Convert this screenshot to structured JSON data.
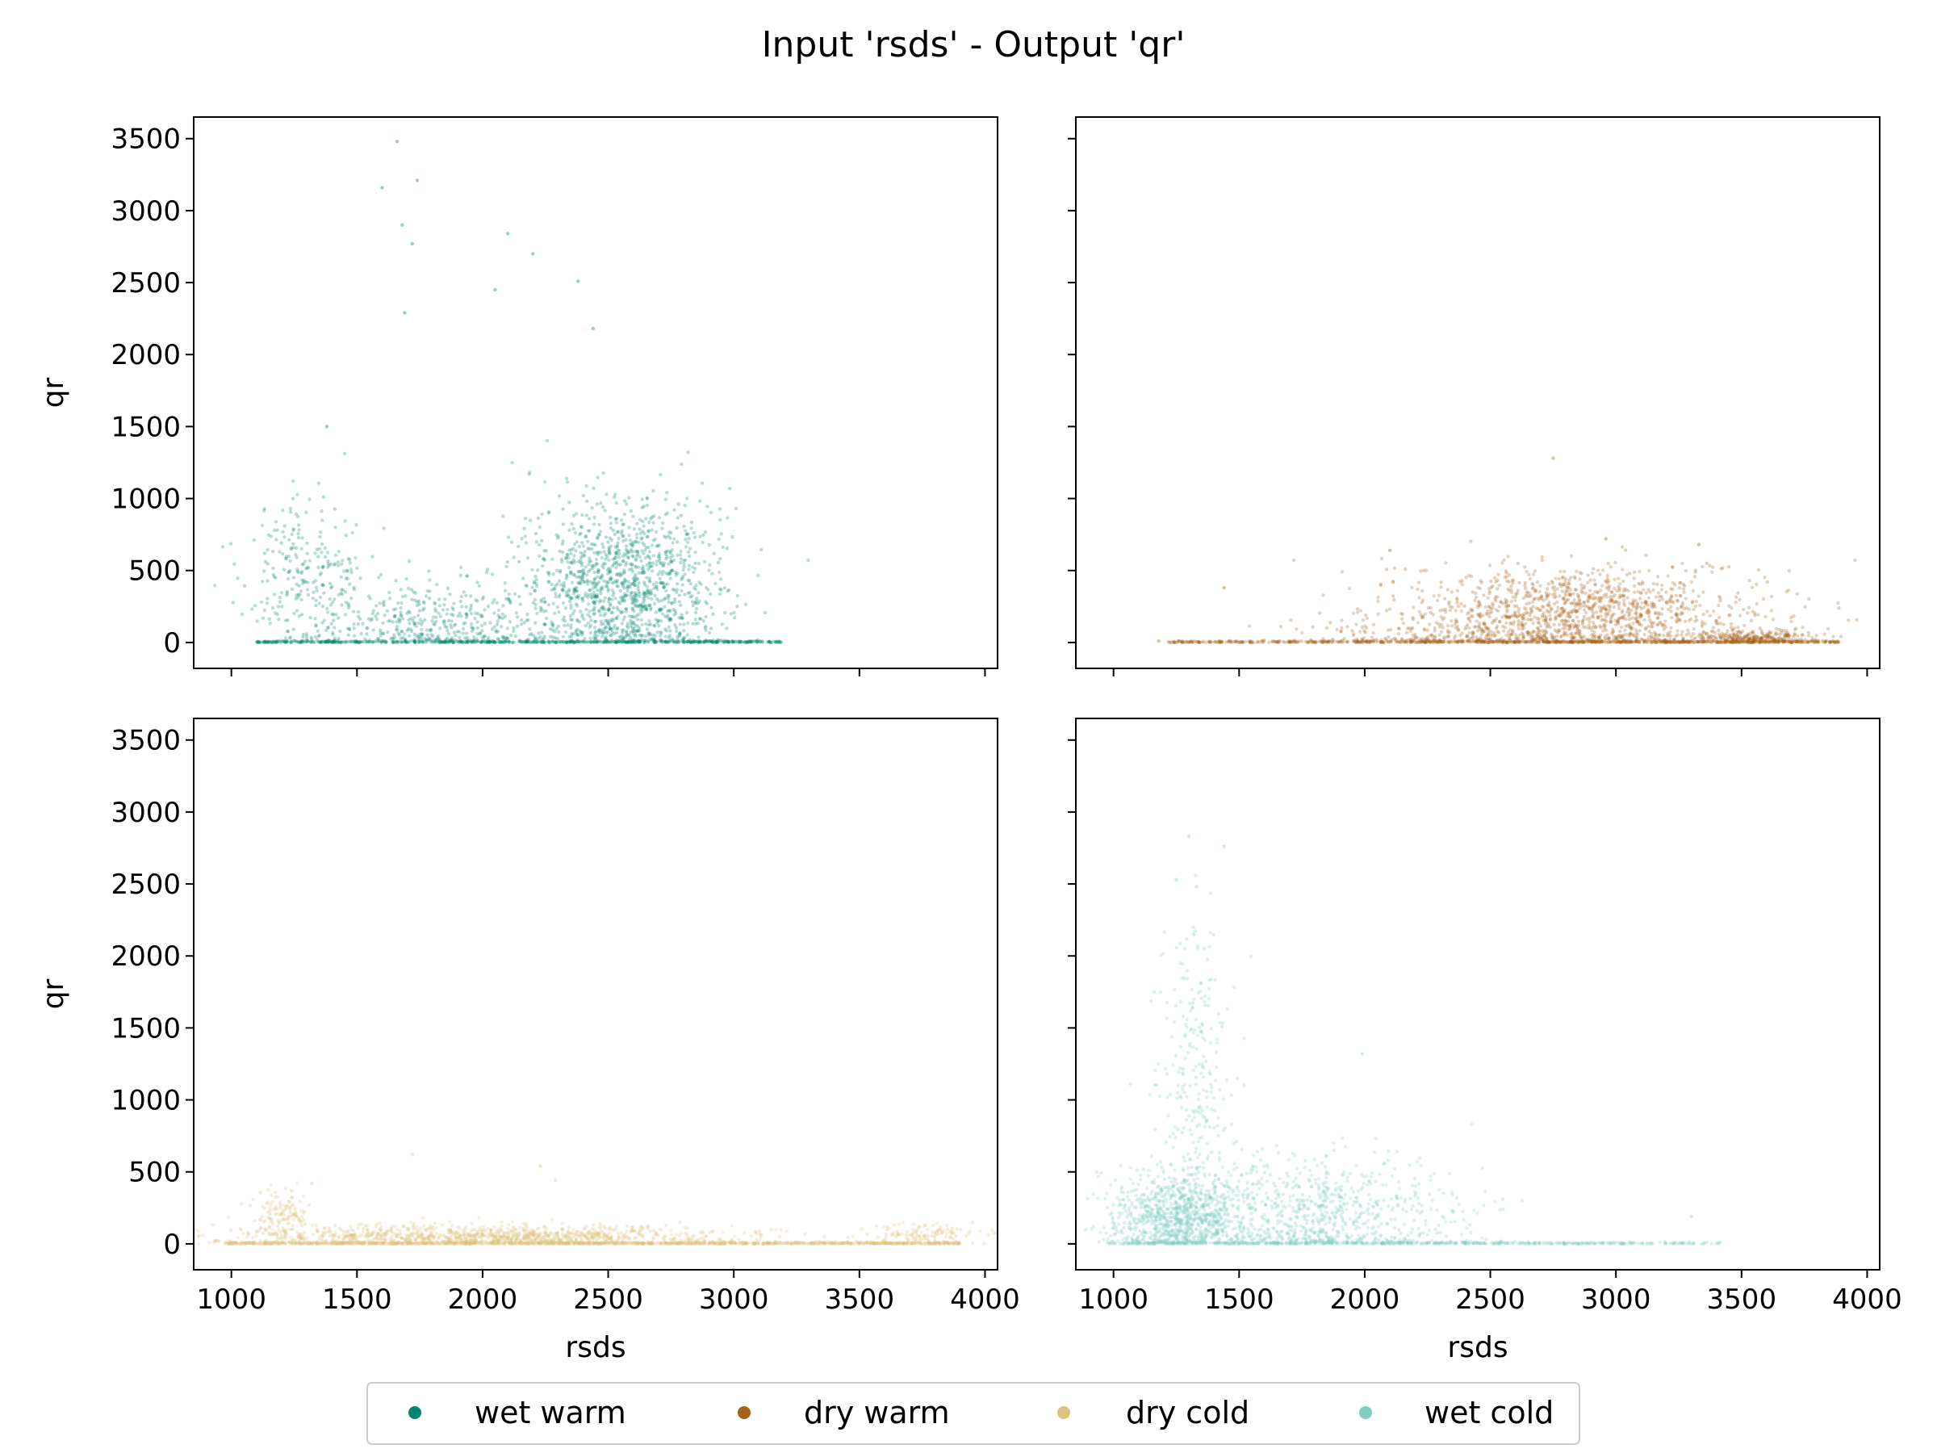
{
  "figure": {
    "title": "Input 'rsds' - Output 'qr'"
  },
  "legend": {
    "placement": "bottom-center",
    "entries": [
      {
        "label": "wet warm",
        "color": "#018571"
      },
      {
        "label": "dry warm",
        "color": "#a6611a"
      },
      {
        "label": "dry cold",
        "color": "#dfc27d"
      },
      {
        "label": "wet cold",
        "color": "#80cdc1"
      }
    ]
  },
  "chart_data": [
    {
      "type": "scatter",
      "series": [
        {
          "name": "wet warm",
          "color": "#018571"
        }
      ],
      "xlabel": "",
      "ylabel": "qr",
      "xlim": [
        850,
        4050
      ],
      "ylim": [
        -180,
        3650
      ],
      "xticks": [
        "1000",
        "1500",
        "2000",
        "2500",
        "3000",
        "3500",
        "4000"
      ],
      "yticks": [
        "0",
        "500",
        "1000",
        "1500",
        "2000",
        "2500",
        "3000",
        "3500"
      ],
      "show_xticklabels": false,
      "show_yticklabels": true,
      "grid": false,
      "clusters": [
        {
          "x": [
            1100,
            3200
          ],
          "baseline": 0,
          "weight": 0.25
        },
        {
          "center": [
            2550,
            380
          ],
          "spread": [
            200,
            300
          ],
          "weight": 0.5
        },
        {
          "center": [
            1300,
            450
          ],
          "spread": [
            120,
            280
          ],
          "weight": 0.1
        },
        {
          "center": [
            1800,
            150
          ],
          "spread": [
            220,
            150
          ],
          "weight": 0.15
        }
      ],
      "outliers": [
        [
          1660,
          3480
        ],
        [
          1600,
          3160
        ],
        [
          1740,
          3210
        ],
        [
          1680,
          2900
        ],
        [
          1720,
          2770
        ],
        [
          2100,
          2840
        ],
        [
          2380,
          2510
        ],
        [
          2200,
          2700
        ],
        [
          2050,
          2450
        ],
        [
          1690,
          2290
        ],
        [
          2440,
          2180
        ],
        [
          1380,
          1500
        ]
      ]
    },
    {
      "type": "scatter",
      "series": [
        {
          "name": "dry warm",
          "color": "#a6611a"
        }
      ],
      "xlabel": "",
      "ylabel": "",
      "xlim": [
        850,
        4050
      ],
      "ylim": [
        -180,
        3650
      ],
      "xticks": [
        "1000",
        "1500",
        "2000",
        "2500",
        "3000",
        "3500",
        "4000"
      ],
      "yticks": [
        "0",
        "500",
        "1000",
        "1500",
        "2000",
        "2500",
        "3000",
        "3500"
      ],
      "show_xticklabels": false,
      "show_yticklabels": false,
      "grid": false,
      "clusters": [
        {
          "x": [
            1200,
            3900
          ],
          "baseline": 0,
          "weight": 0.3
        },
        {
          "center": [
            2850,
            180
          ],
          "spread": [
            350,
            170
          ],
          "weight": 0.55
        },
        {
          "center": [
            3550,
            30
          ],
          "spread": [
            120,
            30
          ],
          "weight": 0.1
        },
        {
          "center": [
            2200,
            60
          ],
          "spread": [
            250,
            80
          ],
          "weight": 0.05
        }
      ],
      "outliers": [
        [
          2750,
          1280
        ],
        [
          2100,
          640
        ],
        [
          3330,
          680
        ],
        [
          2960,
          720
        ],
        [
          1440,
          380
        ],
        [
          1180,
          10
        ]
      ]
    },
    {
      "type": "scatter",
      "series": [
        {
          "name": "dry cold",
          "color": "#dfc27d"
        }
      ],
      "xlabel": "rsds",
      "ylabel": "qr",
      "xlim": [
        850,
        4050
      ],
      "ylim": [
        -180,
        3650
      ],
      "xticks": [
        "1000",
        "1500",
        "2000",
        "2500",
        "3000",
        "3500",
        "4000"
      ],
      "yticks": [
        "0",
        "500",
        "1000",
        "1500",
        "2000",
        "2500",
        "3000",
        "3500"
      ],
      "show_xticklabels": true,
      "show_yticklabels": true,
      "grid": false,
      "clusters": [
        {
          "x": [
            970,
            3900
          ],
          "baseline": 0,
          "weight": 0.45
        },
        {
          "center": [
            2000,
            50
          ],
          "spread": [
            500,
            40
          ],
          "weight": 0.45
        },
        {
          "center": [
            1200,
            200
          ],
          "spread": [
            60,
            100
          ],
          "weight": 0.05
        },
        {
          "center": [
            3750,
            60
          ],
          "spread": [
            120,
            40
          ],
          "weight": 0.05
        }
      ],
      "outliers": [
        [
          1720,
          620
        ],
        [
          2230,
          540
        ],
        [
          2290,
          440
        ],
        [
          1320,
          420
        ],
        [
          1240,
          370
        ]
      ]
    },
    {
      "type": "scatter",
      "series": [
        {
          "name": "wet cold",
          "color": "#80cdc1"
        }
      ],
      "xlabel": "rsds",
      "ylabel": "",
      "xlim": [
        850,
        4050
      ],
      "ylim": [
        -180,
        3650
      ],
      "xticks": [
        "1000",
        "1500",
        "2000",
        "2500",
        "3000",
        "3500",
        "4000"
      ],
      "yticks": [
        "0",
        "500",
        "1000",
        "1500",
        "2000",
        "2500",
        "3000",
        "3500"
      ],
      "show_xticklabels": true,
      "show_yticklabels": false,
      "grid": false,
      "clusters": [
        {
          "x": [
            980,
            3420
          ],
          "baseline": 0,
          "weight": 0.2
        },
        {
          "center": [
            1250,
            180
          ],
          "spread": [
            130,
            140
          ],
          "weight": 0.35
        },
        {
          "center": [
            1800,
            200
          ],
          "spread": [
            300,
            200
          ],
          "weight": 0.35
        },
        {
          "center": [
            1330,
            1100
          ],
          "spread": [
            80,
            500
          ],
          "weight": 0.1
        }
      ],
      "outliers": [
        [
          1300,
          2830
        ],
        [
          1440,
          2760
        ],
        [
          1250,
          2530
        ],
        [
          1330,
          2480
        ],
        [
          1320,
          2150
        ],
        [
          1990,
          1320
        ],
        [
          3300,
          190
        ]
      ]
    }
  ]
}
